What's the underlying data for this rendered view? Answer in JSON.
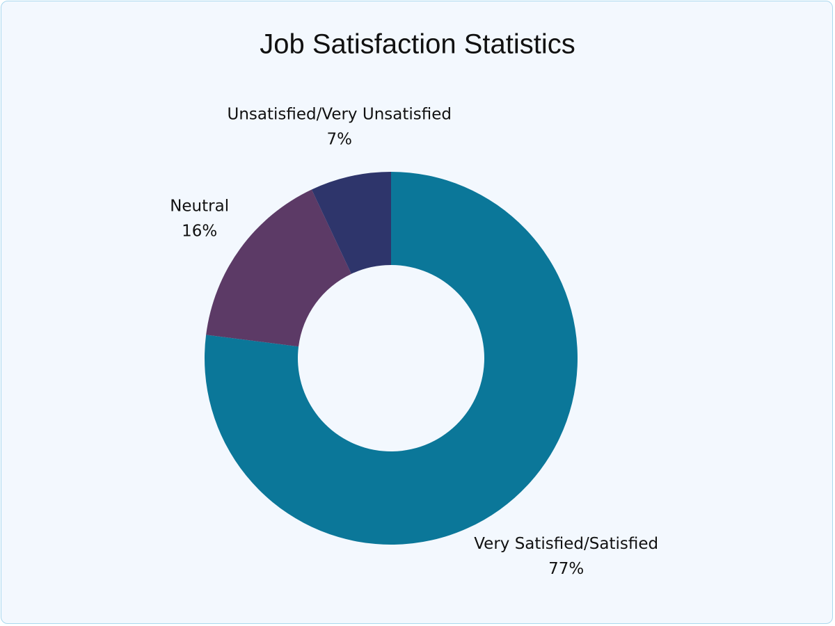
{
  "chart_data": {
    "type": "donut",
    "title": "Job Satisfaction Statistics",
    "categories": [
      "Very Satisfied/Satisfied",
      "Neutral",
      "Unsatisfied/Very Unsatisfied"
    ],
    "values": [
      77,
      16,
      7
    ],
    "value_labels": [
      "77%",
      "16%",
      "7%"
    ],
    "colors": [
      "#0b7799",
      "#5c3a66",
      "#2e356b"
    ]
  }
}
